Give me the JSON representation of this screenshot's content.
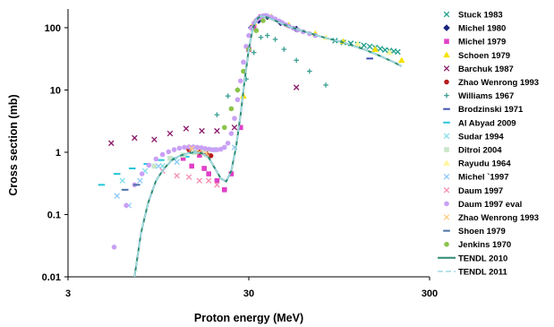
{
  "chart_data": {
    "type": "scatter",
    "title": "",
    "xlabel": "Proton energy (MeV)",
    "ylabel": "Cross section (mb)",
    "xscale": "log",
    "yscale": "log",
    "xlim": [
      3,
      300
    ],
    "ylim": [
      0.01,
      200
    ],
    "xticks": [
      3,
      30,
      300
    ],
    "xtick_labels": [
      "3",
      "30",
      "300"
    ],
    "yticks": [
      0.01,
      0.1,
      1,
      10,
      100
    ],
    "ytick_labels": [
      "0.01",
      "0.1",
      "1",
      "10",
      "100"
    ],
    "grid": false,
    "legend_position": "right",
    "series": [
      {
        "name": "Stuck 1983",
        "marker": "x",
        "color": "#1a9e8a",
        "x": [
          90,
          100,
          110,
          120,
          130,
          140,
          150,
          160,
          170,
          180,
          190,
          200
        ],
        "y": [
          62,
          58,
          56,
          54,
          52,
          50,
          48,
          46,
          44,
          43,
          42,
          41
        ]
      },
      {
        "name": "Michel 1980",
        "marker": "diamond",
        "color": "#1a237e",
        "x": [
          31,
          34,
          38,
          45,
          55
        ],
        "y": [
          100,
          130,
          150,
          120,
          95
        ]
      },
      {
        "name": "Michel 1979",
        "marker": "square",
        "color": "#e040c8",
        "x": [
          13,
          14.5,
          16,
          17,
          18,
          20,
          22,
          24,
          27,
          30,
          32,
          35
        ],
        "y": [
          0.8,
          0.6,
          0.9,
          0.55,
          0.45,
          0.35,
          0.25,
          0.45,
          2.5,
          45,
          100,
          150
        ]
      },
      {
        "name": "Schoen 1979",
        "marker": "triangle",
        "color": "#f5e100",
        "x": [
          28,
          32,
          40,
          50,
          70,
          100,
          150,
          210
        ],
        "y": [
          8,
          120,
          150,
          110,
          80,
          60,
          45,
          30
        ]
      },
      {
        "name": "Barchuk 1987",
        "marker": "x",
        "color": "#8b1a6b",
        "x": [
          5.2,
          7,
          9,
          11,
          13.5,
          16.5,
          20,
          25,
          55
        ],
        "y": [
          1.4,
          1.7,
          1.6,
          2.0,
          2.4,
          2.2,
          2.2,
          2.5,
          11
        ]
      },
      {
        "name": "Zhao Wenrong 1993",
        "marker": "circle",
        "color": "#b71c1c",
        "x": [
          14,
          16,
          17.5,
          18.5
        ],
        "y": [
          1.1,
          1.0,
          0.95,
          0.88
        ]
      },
      {
        "name": "Williams 1967",
        "marker": "plus",
        "color": "#3a9e90",
        "x": [
          20,
          23,
          26,
          29,
          32,
          35,
          38,
          42,
          47,
          55,
          65,
          80
        ],
        "y": [
          4,
          8,
          10,
          15,
          40,
          70,
          75,
          65,
          45,
          30,
          20,
          12
        ]
      },
      {
        "name": "Brodzinski 1971",
        "marker": "dash",
        "color": "#3f51b5",
        "x": [
          140
        ],
        "y": [
          32
        ]
      },
      {
        "name": "Al Abyad 2009",
        "marker": "dash",
        "color": "#26c6da",
        "x": [
          4.6,
          5.6,
          6.8,
          8.2,
          9.8,
          11.5,
          13.5
        ],
        "y": [
          0.3,
          0.45,
          0.55,
          0.65,
          0.75,
          0.8,
          0.85
        ]
      },
      {
        "name": "Sudar 1994",
        "marker": "x",
        "color": "#80deea",
        "x": [
          6,
          8,
          10,
          12
        ],
        "y": [
          0.35,
          0.5,
          0.6,
          0.7
        ]
      },
      {
        "name": "Ditroi 2004",
        "marker": "square",
        "color": "#c8e6c9",
        "x": [
          9,
          11,
          13,
          15,
          17
        ],
        "y": [
          0.6,
          0.8,
          0.9,
          1.0,
          1.05
        ]
      },
      {
        "name": "Rayudu 1964",
        "marker": "triangle",
        "color": "#fff59d",
        "x": [
          80,
          120,
          180
        ],
        "y": [
          70,
          55,
          40
        ]
      },
      {
        "name": "Michel `1997",
        "marker": "x",
        "color": "#90caf9",
        "x": [
          5.6,
          6.5,
          7.5,
          9.5,
          12,
          15,
          19,
          25
        ],
        "y": [
          0.2,
          0.14,
          0.35,
          0.6,
          0.7,
          1.05,
          1.1,
          1.2
        ]
      },
      {
        "name": "Daum 1997",
        "marker": "x",
        "color": "#f48fb1",
        "x": [
          10,
          12,
          14,
          16,
          18,
          20
        ],
        "y": [
          0.5,
          0.42,
          0.4,
          0.35,
          0.35,
          0.3
        ]
      },
      {
        "name": "Daum 1997 eval",
        "marker": "circle",
        "color": "#c9a0f5",
        "x": [
          5.4,
          6.3,
          7,
          7.7,
          8.4,
          9.2,
          10,
          10.8,
          11.6,
          12.4,
          13.2,
          14,
          14.8,
          15.6,
          16.4,
          17.2,
          18,
          19,
          20,
          21,
          22,
          23,
          24,
          25,
          26,
          27,
          28,
          29,
          30,
          31,
          32,
          33,
          34,
          35,
          36,
          37,
          38,
          40,
          42,
          44,
          46,
          48,
          50,
          53,
          56,
          60,
          65,
          70
        ],
        "y": [
          0.03,
          0.14,
          0.3,
          0.45,
          0.62,
          0.78,
          0.92,
          1.02,
          1.1,
          1.16,
          1.2,
          1.22,
          1.22,
          1.2,
          1.18,
          1.15,
          1.12,
          1.1,
          1.1,
          1.12,
          1.2,
          1.4,
          2.0,
          3.5,
          7,
          14,
          28,
          50,
          75,
          98,
          118,
          132,
          142,
          150,
          155,
          157,
          155,
          148,
          138,
          128,
          120,
          112,
          106,
          98,
          92,
          86,
          80,
          75
        ]
      },
      {
        "name": "Zhao Wenrong 1993",
        "marker": "x",
        "color": "#ffcc80",
        "x": [
          14.5,
          16,
          17.5
        ],
        "y": [
          1.15,
          1.0,
          0.95
        ]
      },
      {
        "name": "Shoen 1979",
        "marker": "dash",
        "color": "#4a6fa5",
        "x": [
          6.2,
          7.2
        ],
        "y": [
          0.25,
          0.3
        ]
      },
      {
        "name": "Jenkins 1970",
        "marker": "circle",
        "color": "#8bc34a",
        "x": [
          22,
          24,
          26,
          28,
          30,
          33,
          36
        ],
        "y": [
          2.5,
          5,
          10,
          20,
          45,
          90,
          130
        ]
      },
      {
        "name": "TENDL 2010",
        "marker": "line",
        "color": "#2e8b72",
        "x": [
          7,
          7.6,
          8.3,
          9.2,
          10.2,
          11.3,
          12.5,
          13.8,
          15,
          16.5,
          18,
          19.5,
          21,
          22.5,
          24,
          25.5,
          27,
          28.5,
          30,
          31.5,
          33,
          35,
          37,
          40,
          44,
          50,
          60,
          75,
          100,
          130,
          160,
          190,
          210
        ],
        "y": [
          0.01,
          0.05,
          0.15,
          0.35,
          0.55,
          0.75,
          0.88,
          0.96,
          1.0,
          0.96,
          0.82,
          0.55,
          0.38,
          0.34,
          0.5,
          1.2,
          4,
          15,
          45,
          95,
          135,
          155,
          150,
          138,
          122,
          105,
          88,
          72,
          58,
          45,
          35,
          28,
          24
        ]
      },
      {
        "name": "TENDL 2011",
        "marker": "dashedline",
        "color": "#a8dce8",
        "x": [
          7,
          7.6,
          8.3,
          9.2,
          10.2,
          11.3,
          12.5,
          13.8,
          15,
          16.5,
          18,
          19.5,
          21,
          22.5,
          24,
          25.5,
          27,
          28.5,
          30,
          31.5,
          33,
          35,
          37,
          40,
          44,
          50,
          60,
          75,
          100,
          130,
          160,
          190,
          210
        ],
        "y": [
          0.01,
          0.05,
          0.15,
          0.35,
          0.55,
          0.75,
          0.88,
          0.96,
          1.0,
          0.96,
          0.82,
          0.55,
          0.38,
          0.34,
          0.5,
          1.2,
          4,
          15,
          45,
          95,
          135,
          155,
          150,
          138,
          122,
          105,
          88,
          72,
          58,
          45,
          35,
          28,
          24
        ]
      }
    ]
  }
}
